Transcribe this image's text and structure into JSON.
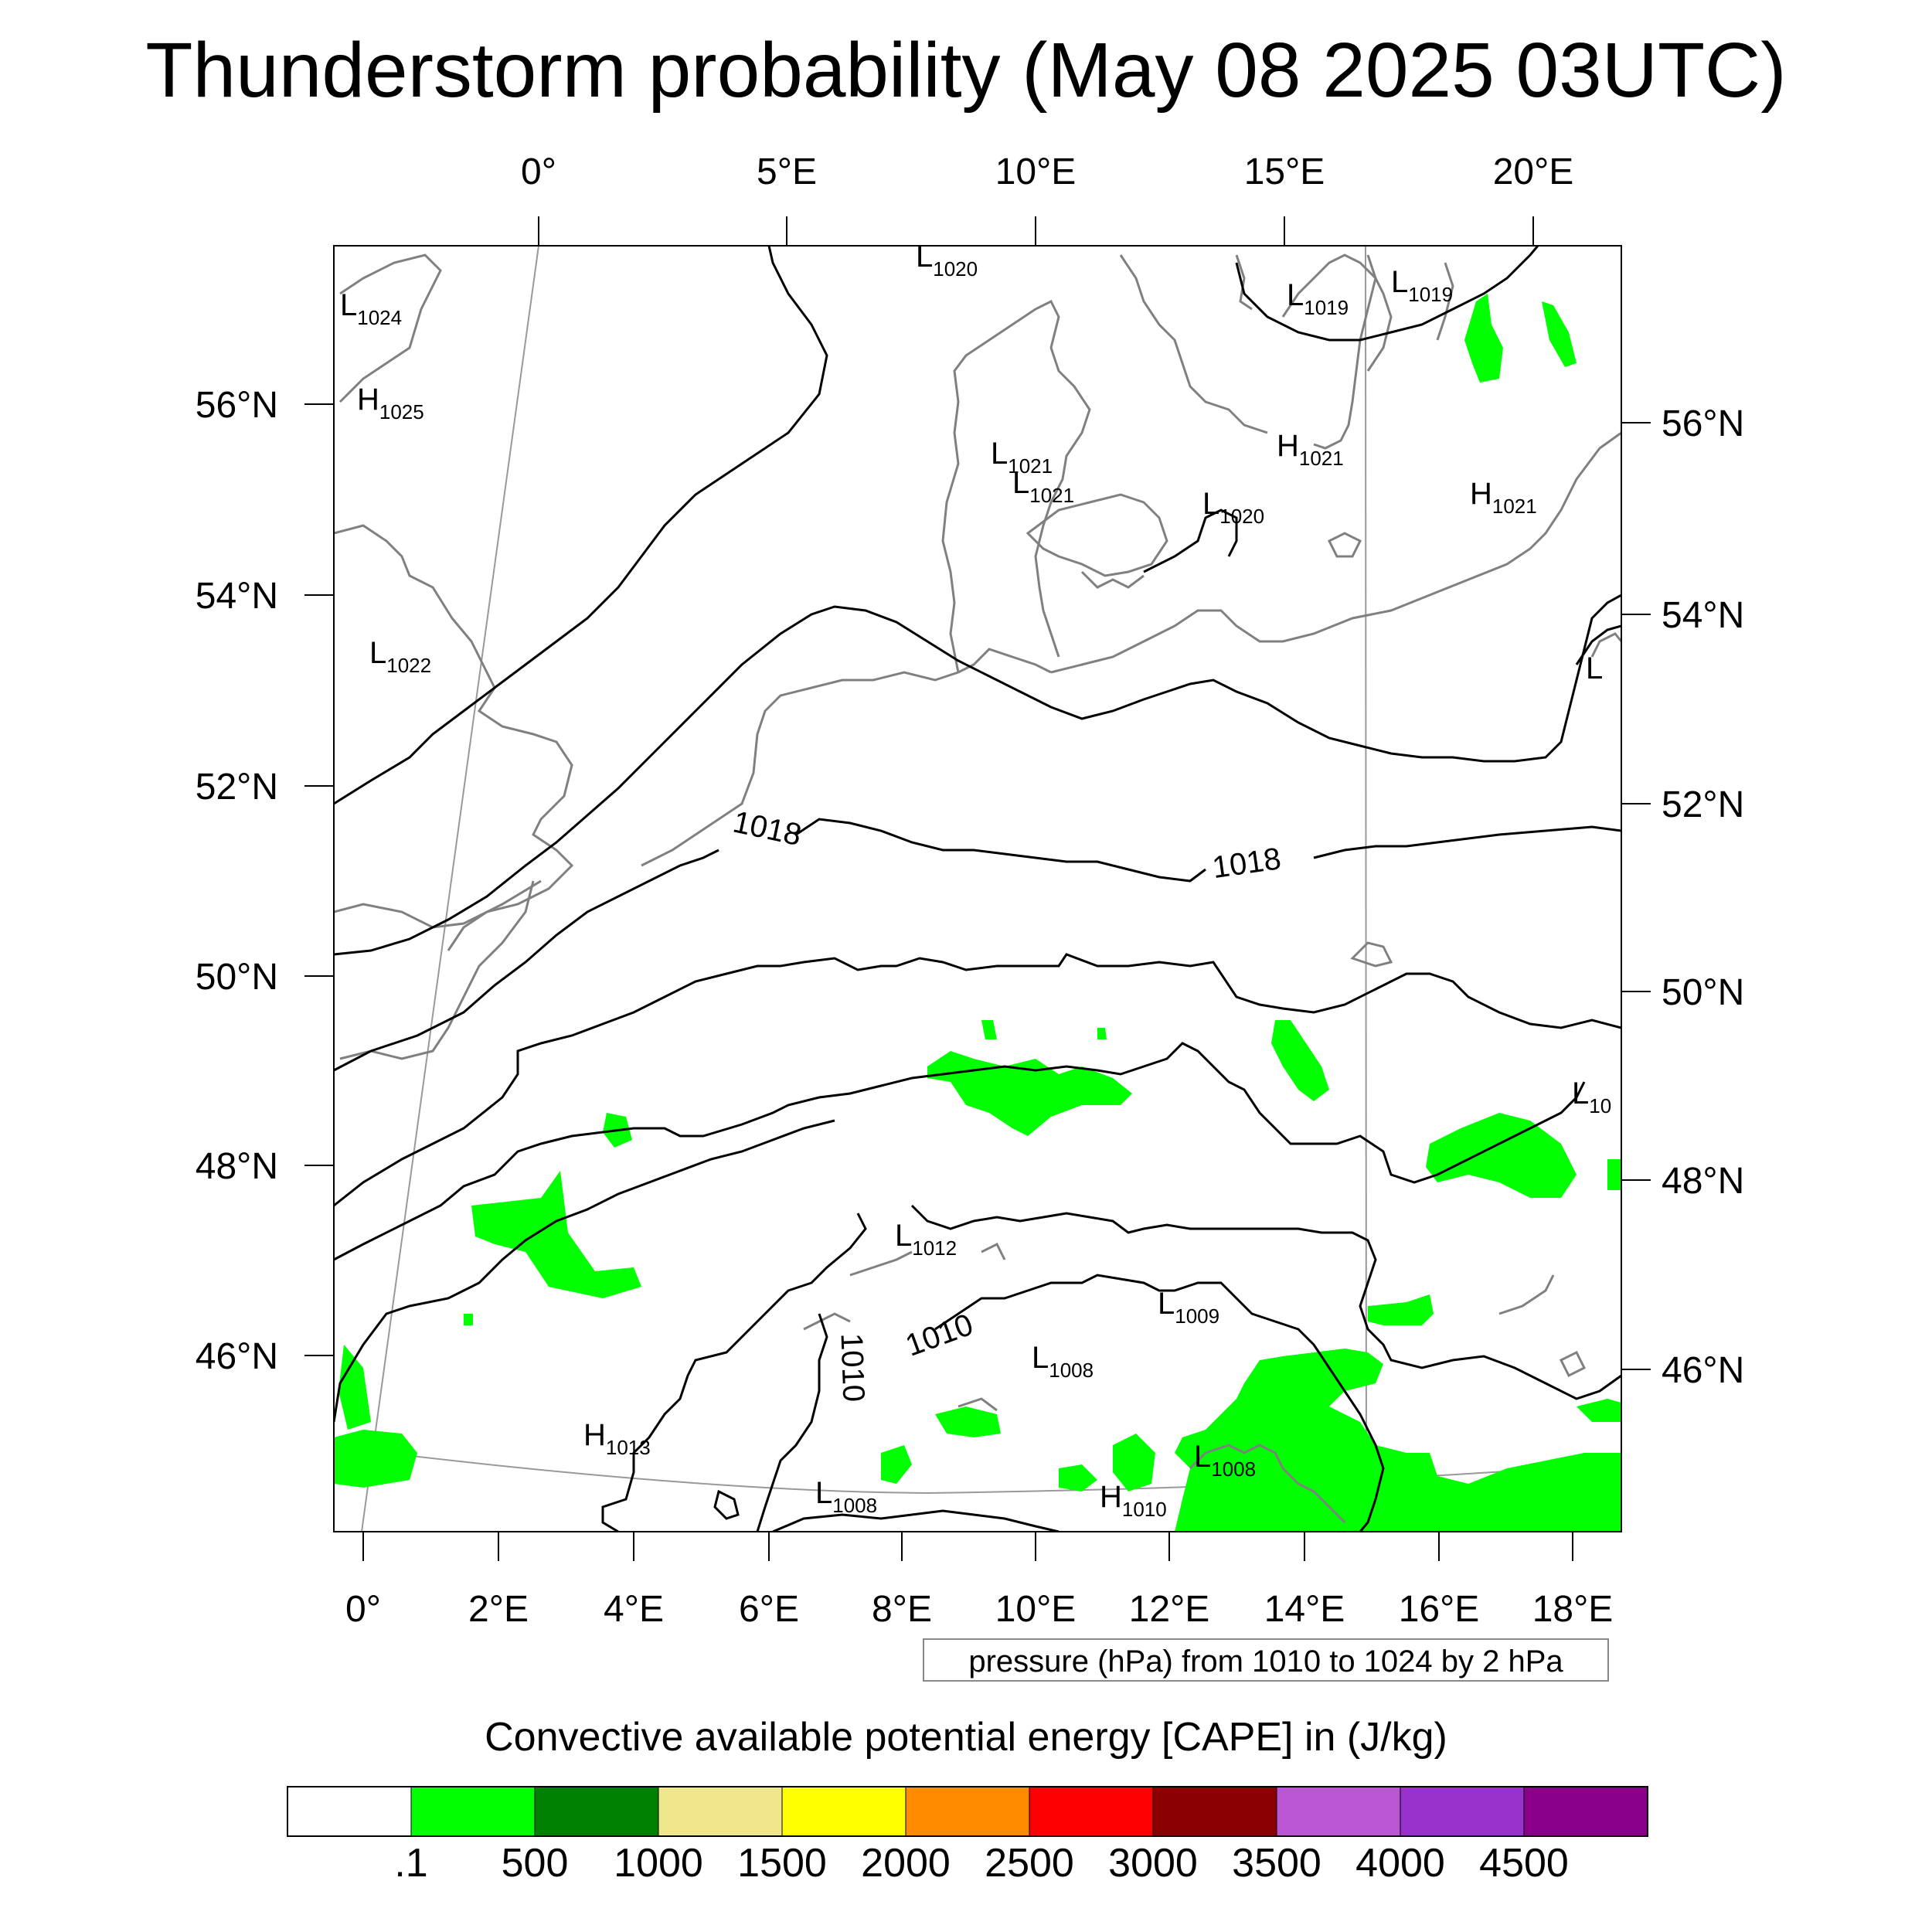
{
  "title": "Thunderstorm probability (May 08 2025 03UTC)",
  "top_lon_labels": [
    "0°",
    "5°E",
    "10°E",
    "15°E",
    "20°E"
  ],
  "bottom_lon_labels": [
    "0°",
    "2°E",
    "4°E",
    "6°E",
    "8°E",
    "10°E",
    "12°E",
    "14°E",
    "16°E",
    "18°E"
  ],
  "left_lat_labels": [
    "56°N",
    "54°N",
    "52°N",
    "50°N",
    "48°N",
    "46°N"
  ],
  "right_lat_labels": [
    "56°N",
    "54°N",
    "52°N",
    "50°N",
    "48°N",
    "46°N"
  ],
  "pressure_centers": [
    {
      "type": "L",
      "value": "1024"
    },
    {
      "type": "H",
      "value": "1025"
    },
    {
      "type": "L",
      "value": "1022"
    },
    {
      "type": "L",
      "value": "1020"
    },
    {
      "type": "L",
      "value": "1019"
    },
    {
      "type": "L",
      "value": "1019"
    },
    {
      "type": "L",
      "value": "1021"
    },
    {
      "type": "L",
      "value": "1021"
    },
    {
      "type": "H",
      "value": "1021"
    },
    {
      "type": "L",
      "value": "1020"
    },
    {
      "type": "H",
      "value": "1021"
    },
    {
      "type": "L",
      "value": ""
    },
    {
      "type": "L",
      "value": "10"
    },
    {
      "type": "L",
      "value": "1012"
    },
    {
      "type": "L",
      "value": "1009"
    },
    {
      "type": "L",
      "value": "1008"
    },
    {
      "type": "H",
      "value": "1013"
    },
    {
      "type": "L",
      "value": "1008"
    },
    {
      "type": "L",
      "value": "1008"
    },
    {
      "type": "H",
      "value": "1010"
    }
  ],
  "contour_labels": [
    "1018",
    "1018",
    "1010",
    "1010"
  ],
  "contour_note": "pressure (hPa) from 1010 to 1024 by 2 hPa",
  "colorbar": {
    "title": "Convective available potential energy [CAPE] in (J/kg)",
    "labels": [
      ".1",
      "500",
      "1000",
      "1500",
      "2000",
      "2500",
      "3000",
      "3500",
      "4000",
      "4500"
    ],
    "colors": [
      "#ffffff",
      "#00ff00",
      "#008000",
      "#f0e68c",
      "#ffff00",
      "#ff8c00",
      "#ff0000",
      "#8b0000",
      "#ba55d3",
      "#9932cc",
      "#8b008b"
    ]
  }
}
